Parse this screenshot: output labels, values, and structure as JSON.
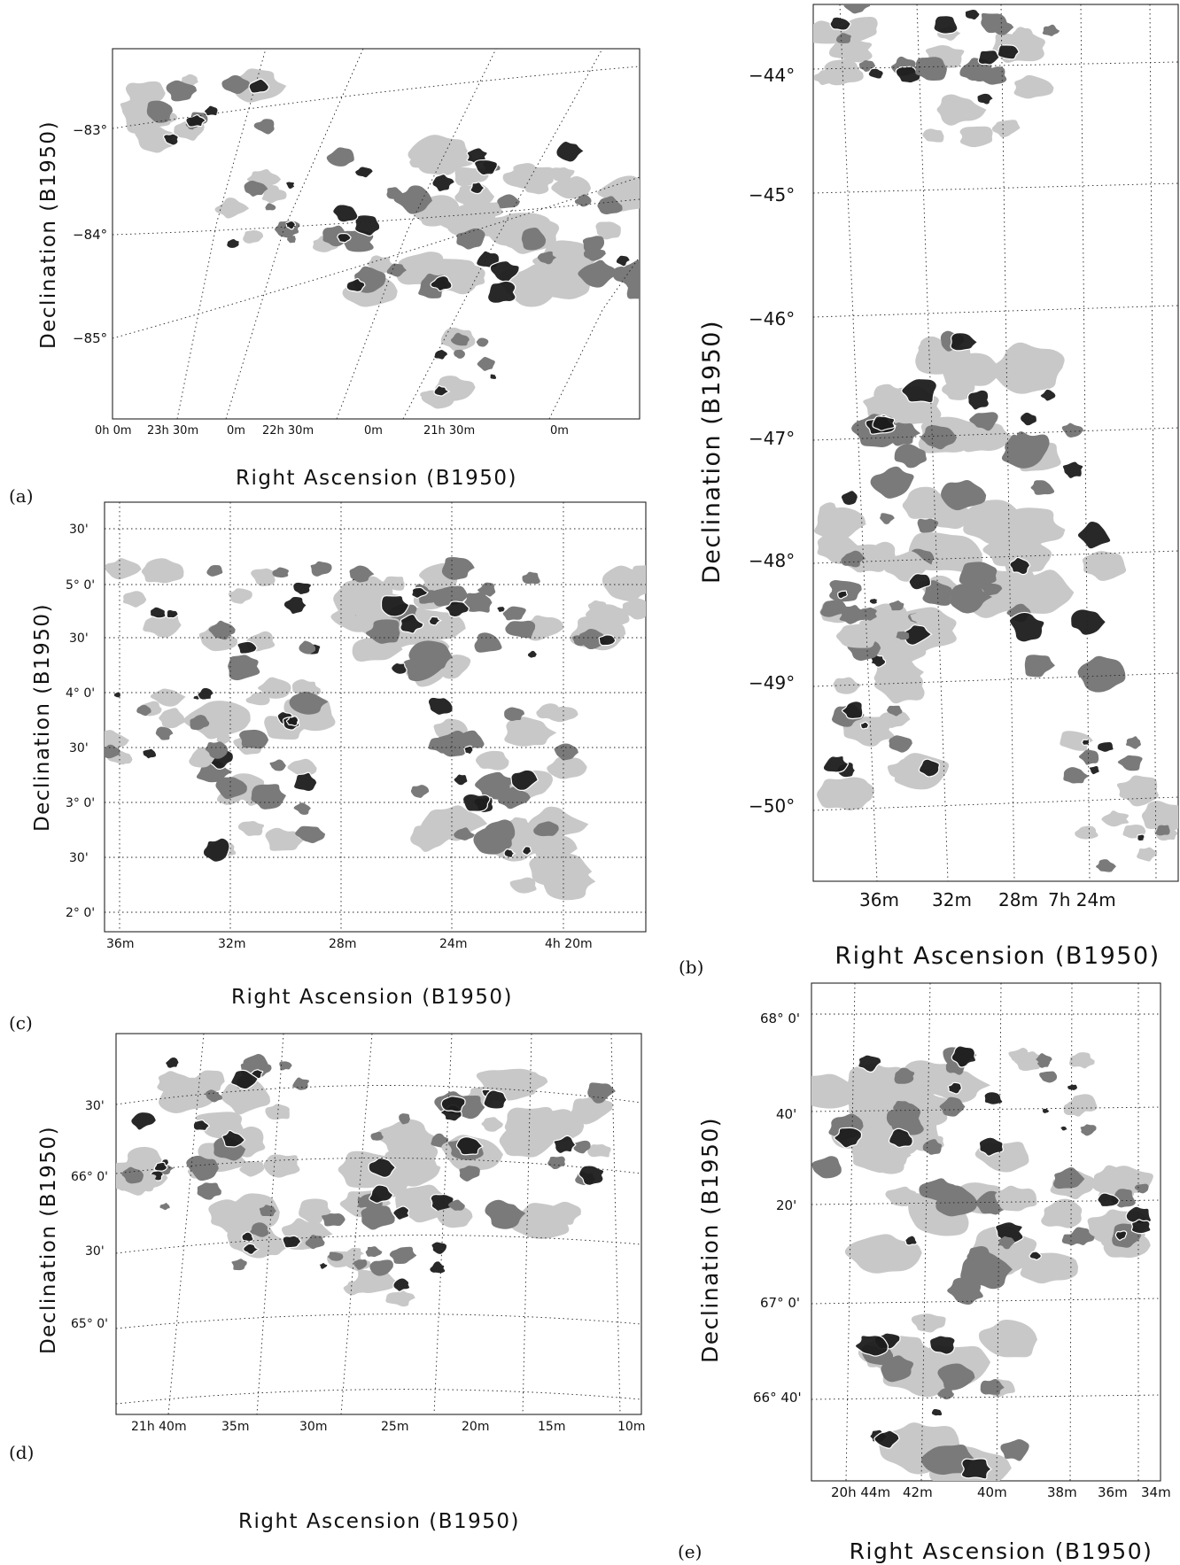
{
  "figure": {
    "panels": [
      {
        "id": "a",
        "letter": "(a)",
        "xlabel": "Right Ascension (B1950)",
        "ylabel": "Declination (B1950)",
        "yticks": [
          "−83°",
          "−84°",
          "−85°"
        ],
        "xticks": [
          "0h 0m",
          "23h 30m",
          "0m",
          "22h 30m",
          "0m",
          "21h 30m",
          "0m"
        ]
      },
      {
        "id": "b",
        "letter": "(b)",
        "xlabel": "Right Ascension (B1950)",
        "ylabel": "Declination (B1950)",
        "yticks": [
          "−44°",
          "−45°",
          "−46°",
          "−47°",
          "−48°",
          "−49°",
          "−50°"
        ],
        "xticks": [
          "36m",
          "32m",
          "28m",
          "7h 24m"
        ]
      },
      {
        "id": "c",
        "letter": "(c)",
        "xlabel": "Right Ascension (B1950)",
        "ylabel": "Declination (B1950)",
        "yticks": [
          "30'",
          "5° 0'",
          "30'",
          "4° 0'",
          "30'",
          "3° 0'",
          "30'",
          "2° 0'"
        ],
        "xticks": [
          "36m",
          "32m",
          "28m",
          "24m",
          "4h 20m"
        ]
      },
      {
        "id": "d",
        "letter": "(d)",
        "xlabel": "Right Ascension (B1950)",
        "ylabel": "Declination (B1950)",
        "yticks": [
          "30'",
          "66° 0'",
          "30'",
          "65° 0'"
        ],
        "xticks": [
          "21h 40m",
          "35m",
          "30m",
          "25m",
          "20m",
          "15m",
          "10m"
        ]
      },
      {
        "id": "e",
        "letter": "(e)",
        "xlabel": "Right Ascension (B1950)",
        "ylabel": "Declination (B1950)",
        "yticks": [
          "68° 0'",
          "40'",
          "20'",
          "67° 0'",
          "66° 40'"
        ],
        "xticks": [
          "20h 44m",
          "42m",
          "40m",
          "38m",
          "36m",
          "34m"
        ]
      }
    ],
    "colors": {
      "ink": "#1a1a1a",
      "dark": "#1c1c1c",
      "mid": "#7a7a7a",
      "light": "#c8c8c8",
      "contour": "#ffffff"
    }
  }
}
